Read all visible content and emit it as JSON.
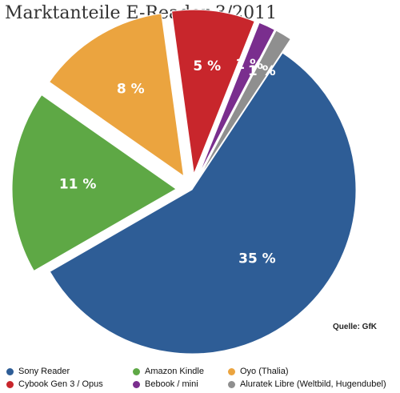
{
  "chart_data": {
    "type": "pie",
    "title": "Marktanteile E-Reader 3/2011",
    "source": "Quelle: GfK",
    "slices": [
      {
        "name": "Sony Reader",
        "value": 35,
        "label": "35 %",
        "color": "#2e5d96",
        "exploded": false
      },
      {
        "name": "Amazon Kindle",
        "value": 11,
        "label": "11 %",
        "color": "#5ea845",
        "exploded": true
      },
      {
        "name": "Oyo (Thalia)",
        "value": 8,
        "label": "8 %",
        "color": "#eba43f",
        "exploded": true
      },
      {
        "name": "Cybook Gen 3 / Opus",
        "value": 5,
        "label": "5 %",
        "color": "#c8262c",
        "exploded": true
      },
      {
        "name": "Bebook / mini",
        "value": 1,
        "label": "1 %",
        "color": "#7a2e8e",
        "exploded": true
      },
      {
        "name": "Aluratek Libre (Weltbild, Hugendubel)",
        "value": 1,
        "label": "1 %",
        "color": "#8f8f8f",
        "exploded": true
      }
    ],
    "legend_position": "bottom"
  }
}
